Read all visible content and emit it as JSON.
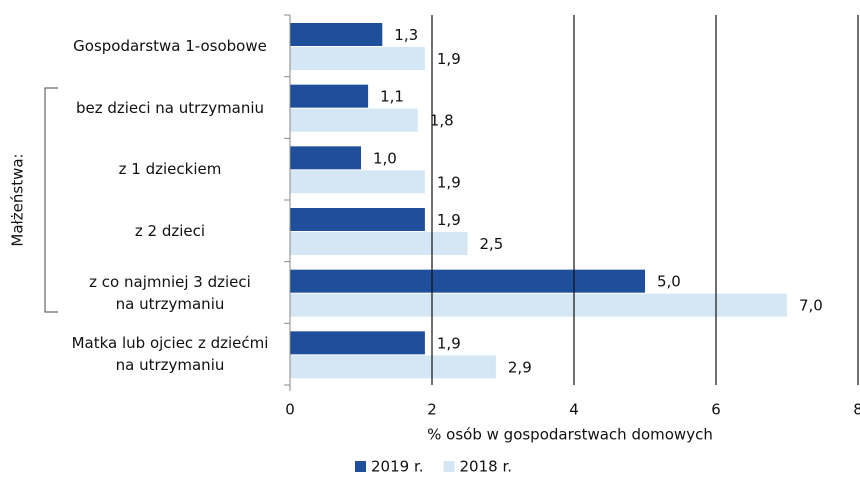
{
  "chart_data": {
    "type": "barh",
    "categories": [
      "Gospodarstwa 1-osobowe",
      "bez dzieci na utrzymaniu",
      "z 1 dzieckiem",
      "z 2 dzieci",
      "z co najmniej 3 dzieci\nna utrzymaniu",
      "Matka lub ojciec z dziećmi\nna utrzymaniu"
    ],
    "group_label": "Małżeństwa:",
    "series": [
      {
        "name": "2019 r.",
        "color": "#1f4e9a",
        "values": [
          1.3,
          1.1,
          1.0,
          1.9,
          5.0,
          1.9
        ],
        "value_labels": [
          "1,3",
          "1,1",
          "1,0",
          "1,9",
          "5,0",
          "1,9"
        ]
      },
      {
        "name": "2018 r.",
        "color": "#d5e7f4",
        "values": [
          1.9,
          1.8,
          1.9,
          2.5,
          7.0,
          2.9
        ],
        "value_labels": [
          "1,9",
          "1,8",
          "1,9",
          "2,5",
          "7,0",
          "2,9"
        ]
      }
    ],
    "xlabel": "% osób w gospodarstwach domowych",
    "xlim": [
      0,
      8
    ],
    "xticks": [
      0,
      2,
      4,
      6,
      8
    ],
    "grid": true,
    "legend": "bottom"
  }
}
